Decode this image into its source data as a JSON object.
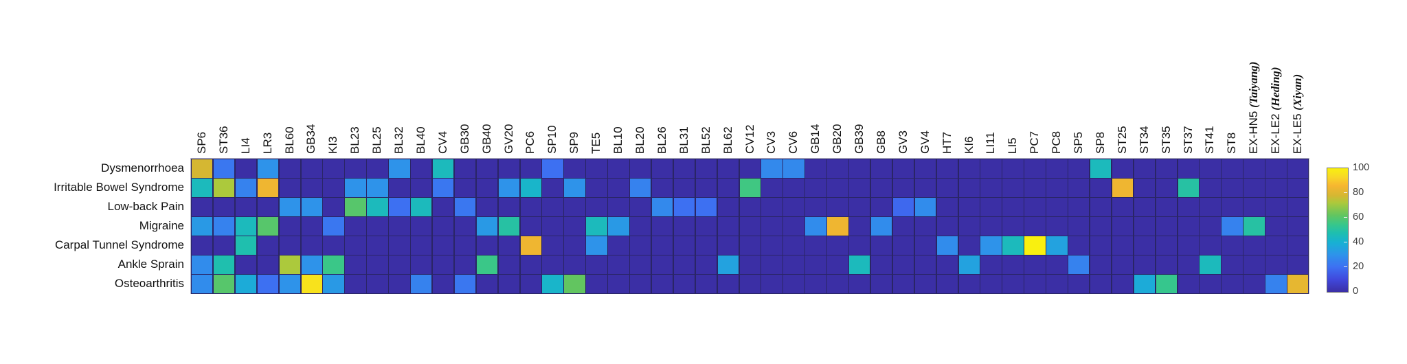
{
  "figure": {
    "background": "#ffffff",
    "description": "Heatmap of acupuncture point usage frequency across seven clinical conditions"
  },
  "style": {
    "cell_gridline_color": "#2a2566",
    "heatmap_frame_color": "#b9b9c9",
    "label_color": "#111111",
    "tick_label_color": "#3c3c3c",
    "colorbar_border_color": "#6f6f6f"
  },
  "chart_data": {
    "type": "heatmap",
    "title": "",
    "xlabel": "",
    "ylabel": "",
    "value_range": [
      0,
      100
    ],
    "colormap": "parula",
    "colormap_stops": [
      [
        0,
        "#3b2fa5"
      ],
      [
        10,
        "#4048dc"
      ],
      [
        20,
        "#3d70f2"
      ],
      [
        30,
        "#2e93ea"
      ],
      [
        40,
        "#17b1d3"
      ],
      [
        48,
        "#1fbfae"
      ],
      [
        55,
        "#3ac788"
      ],
      [
        62,
        "#62c560"
      ],
      [
        72,
        "#acc93c"
      ],
      [
        78,
        "#d5b732"
      ],
      [
        86,
        "#f7b630"
      ],
      [
        93,
        "#f8d826"
      ],
      [
        100,
        "#f9f00f"
      ]
    ],
    "rows": [
      "Dysmenorrhoea",
      "Irritable Bowel Syndrome",
      "Low-back Pain",
      "Migraine",
      "Carpal Tunnel Syndrome",
      "Ankle Sprain",
      "Osteoarthritis"
    ],
    "columns": [
      "SP6",
      "ST36",
      "LI4",
      "LR3",
      "BL60",
      "GB34",
      "KI3",
      "BL23",
      "BL25",
      "BL32",
      "BL40",
      "CV4",
      "GB30",
      "GB40",
      "GV20",
      "PC6",
      "SP10",
      "SP9",
      "TE5",
      "BL10",
      "BL20",
      "BL26",
      "BL31",
      "BL52",
      "BL62",
      "CV12",
      "CV3",
      "CV6",
      "GB14",
      "GB20",
      "GB39",
      "GB8",
      "GV3",
      "GV4",
      "HT7",
      "KI6",
      "LI11",
      "LI5",
      "PC7",
      "PC8",
      "SP5",
      "SP8",
      "ST25",
      "ST34",
      "ST35",
      "ST37",
      "ST41",
      "ST8",
      "EX-HN5 (Taiyang)",
      "EX-LE2 (Heding)",
      "EX-LE5 (Xiyan)"
    ],
    "values": [
      [
        78,
        22,
        0,
        30,
        0,
        0,
        0,
        0,
        0,
        30,
        0,
        45,
        0,
        0,
        0,
        0,
        20,
        0,
        0,
        0,
        0,
        0,
        0,
        0,
        0,
        0,
        27,
        27,
        0,
        0,
        0,
        0,
        0,
        0,
        0,
        0,
        0,
        0,
        0,
        0,
        0,
        45,
        0,
        0,
        0,
        0,
        0,
        0,
        0,
        0,
        0
      ],
      [
        45,
        72,
        25,
        84,
        0,
        0,
        0,
        30,
        30,
        0,
        0,
        22,
        0,
        0,
        30,
        42,
        0,
        30,
        0,
        0,
        25,
        0,
        0,
        0,
        0,
        56,
        0,
        0,
        0,
        0,
        0,
        0,
        0,
        0,
        0,
        0,
        0,
        0,
        0,
        0,
        0,
        0,
        84,
        0,
        0,
        50,
        0,
        0,
        0,
        0,
        0
      ],
      [
        0,
        0,
        0,
        0,
        30,
        30,
        0,
        60,
        45,
        20,
        45,
        0,
        22,
        0,
        0,
        0,
        0,
        0,
        0,
        0,
        0,
        27,
        20,
        20,
        0,
        0,
        0,
        0,
        0,
        0,
        0,
        0,
        18,
        28,
        0,
        0,
        0,
        0,
        0,
        0,
        0,
        0,
        0,
        0,
        0,
        0,
        0,
        0,
        0,
        0,
        0
      ],
      [
        32,
        25,
        45,
        60,
        0,
        0,
        22,
        0,
        0,
        0,
        0,
        0,
        0,
        32,
        50,
        0,
        0,
        0,
        45,
        32,
        0,
        0,
        0,
        0,
        0,
        0,
        0,
        0,
        28,
        84,
        0,
        28,
        0,
        0,
        0,
        0,
        0,
        0,
        0,
        0,
        0,
        0,
        0,
        0,
        0,
        0,
        0,
        25,
        50,
        0,
        0
      ],
      [
        0,
        0,
        48,
        0,
        0,
        0,
        0,
        0,
        0,
        0,
        0,
        0,
        0,
        0,
        0,
        84,
        0,
        0,
        30,
        0,
        0,
        0,
        0,
        0,
        0,
        0,
        0,
        0,
        0,
        0,
        0,
        0,
        0,
        0,
        28,
        0,
        30,
        45,
        100,
        35,
        0,
        0,
        0,
        0,
        0,
        0,
        0,
        0,
        0,
        0,
        0
      ],
      [
        28,
        48,
        0,
        0,
        72,
        30,
        55,
        0,
        0,
        0,
        0,
        0,
        0,
        55,
        0,
        0,
        0,
        0,
        0,
        0,
        0,
        0,
        0,
        0,
        35,
        0,
        0,
        0,
        0,
        0,
        45,
        0,
        0,
        0,
        0,
        35,
        0,
        0,
        0,
        0,
        25,
        0,
        0,
        0,
        0,
        0,
        45,
        0,
        0,
        0,
        0
      ],
      [
        28,
        60,
        38,
        20,
        30,
        96,
        32,
        0,
        0,
        0,
        25,
        0,
        22,
        0,
        0,
        0,
        42,
        62,
        0,
        0,
        0,
        0,
        0,
        0,
        0,
        0,
        0,
        0,
        0,
        0,
        0,
        0,
        0,
        0,
        0,
        0,
        0,
        0,
        0,
        0,
        0,
        0,
        0,
        38,
        54,
        0,
        0,
        0,
        0,
        25,
        82
      ]
    ],
    "colorbar": {
      "min": 0,
      "max": 100,
      "ticks": [
        "0",
        "20",
        "40",
        "60",
        "80",
        "100"
      ],
      "position": "right"
    },
    "grid": true,
    "legend_position": "none"
  }
}
